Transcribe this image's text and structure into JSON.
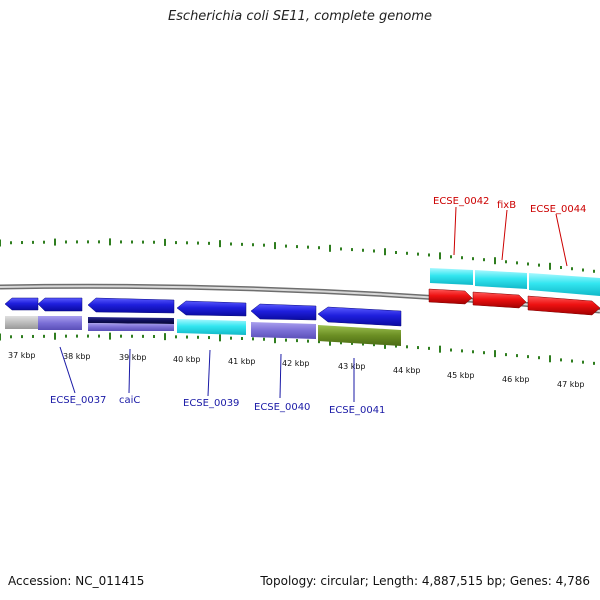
{
  "title": "Escherichia coli SE11, complete genome",
  "footer": {
    "accession": "Accession: NC_011415",
    "summary": "Topology: circular; Length: 4,887,515 bp; Genes: 4,786"
  },
  "axis": {
    "ticks": [
      "37 kbp",
      "38 kbp",
      "39 kbp",
      "40 kbp",
      "41 kbp",
      "42 kbp",
      "43 kbp",
      "44 kbp",
      "45 kbp",
      "46 kbp",
      "47 kbp"
    ]
  },
  "gene_labels": {
    "forward": [
      "ECSE_0042",
      "fixB",
      "ECSE_0044"
    ],
    "reverse": [
      "ECSE_0037",
      "caiC",
      "ECSE_0039",
      "ECSE_0040",
      "ECSE_0041"
    ]
  },
  "colors": {
    "forward_label": "#cc0000",
    "reverse_label": "#1a1aa6",
    "forward_gene": "#ee1111",
    "reverse_gene": "#1f1fdd",
    "cyan": "#33e6f0",
    "lavender": "#7b6fd6",
    "navy": "#10105a",
    "olive": "#6b8e23",
    "gray": "#bdbdbd",
    "backbone": "#888888",
    "tick": "#2e7d1e"
  }
}
